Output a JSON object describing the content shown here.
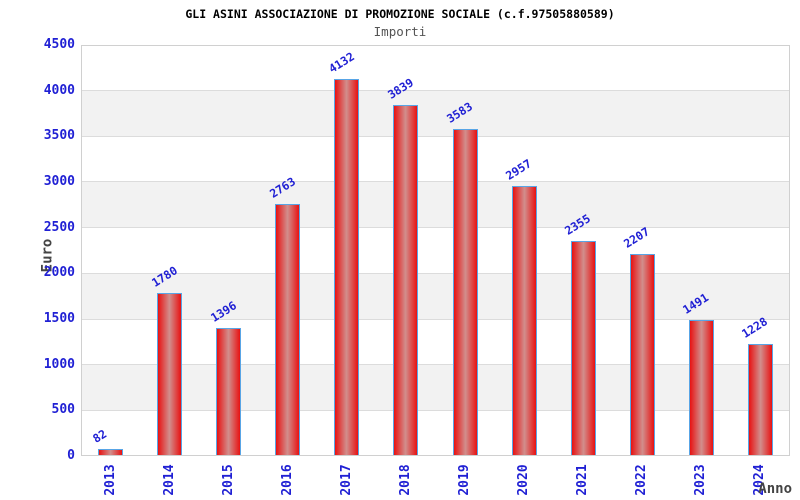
{
  "header": {
    "title": "GLI ASINI ASSOCIAZIONE DI PROMOZIONE SOCIALE (c.f.97505880589)",
    "subtitle": "Importi"
  },
  "chart_data": {
    "type": "bar",
    "title": "GLI ASINI ASSOCIAZIONE DI PROMOZIONE SOCIALE (c.f.97505880589)",
    "subtitle": "Importi",
    "xlabel": "Anno",
    "ylabel": "Euro",
    "categories": [
      "2013",
      "2014",
      "2015",
      "2016",
      "2017",
      "2018",
      "2019",
      "2020",
      "2021",
      "2022",
      "2023",
      "2024"
    ],
    "values": [
      82,
      1780,
      1396,
      2763,
      4132,
      3839,
      3583,
      2957,
      2355,
      2207,
      1491,
      1228
    ],
    "ylim": [
      0,
      4500
    ],
    "ytick_step": 500,
    "grid": "horizontal-gridlines-with-alternating-bands",
    "legend": "none",
    "colors": {
      "bar_fill_edge": "#e81212",
      "bar_fill_center": "#d18f8d",
      "bar_border": "#58a5e6",
      "tick_label_blue": "#2020d4",
      "value_label_blue": "#2020d4",
      "band_gray": "#f2f2f2",
      "gridline": "#dcdcdc",
      "plot_border": "#d0d0d0",
      "title": "#000000",
      "subtitle": "#555555",
      "axis_title": "#444444",
      "background": "#ffffff"
    }
  }
}
